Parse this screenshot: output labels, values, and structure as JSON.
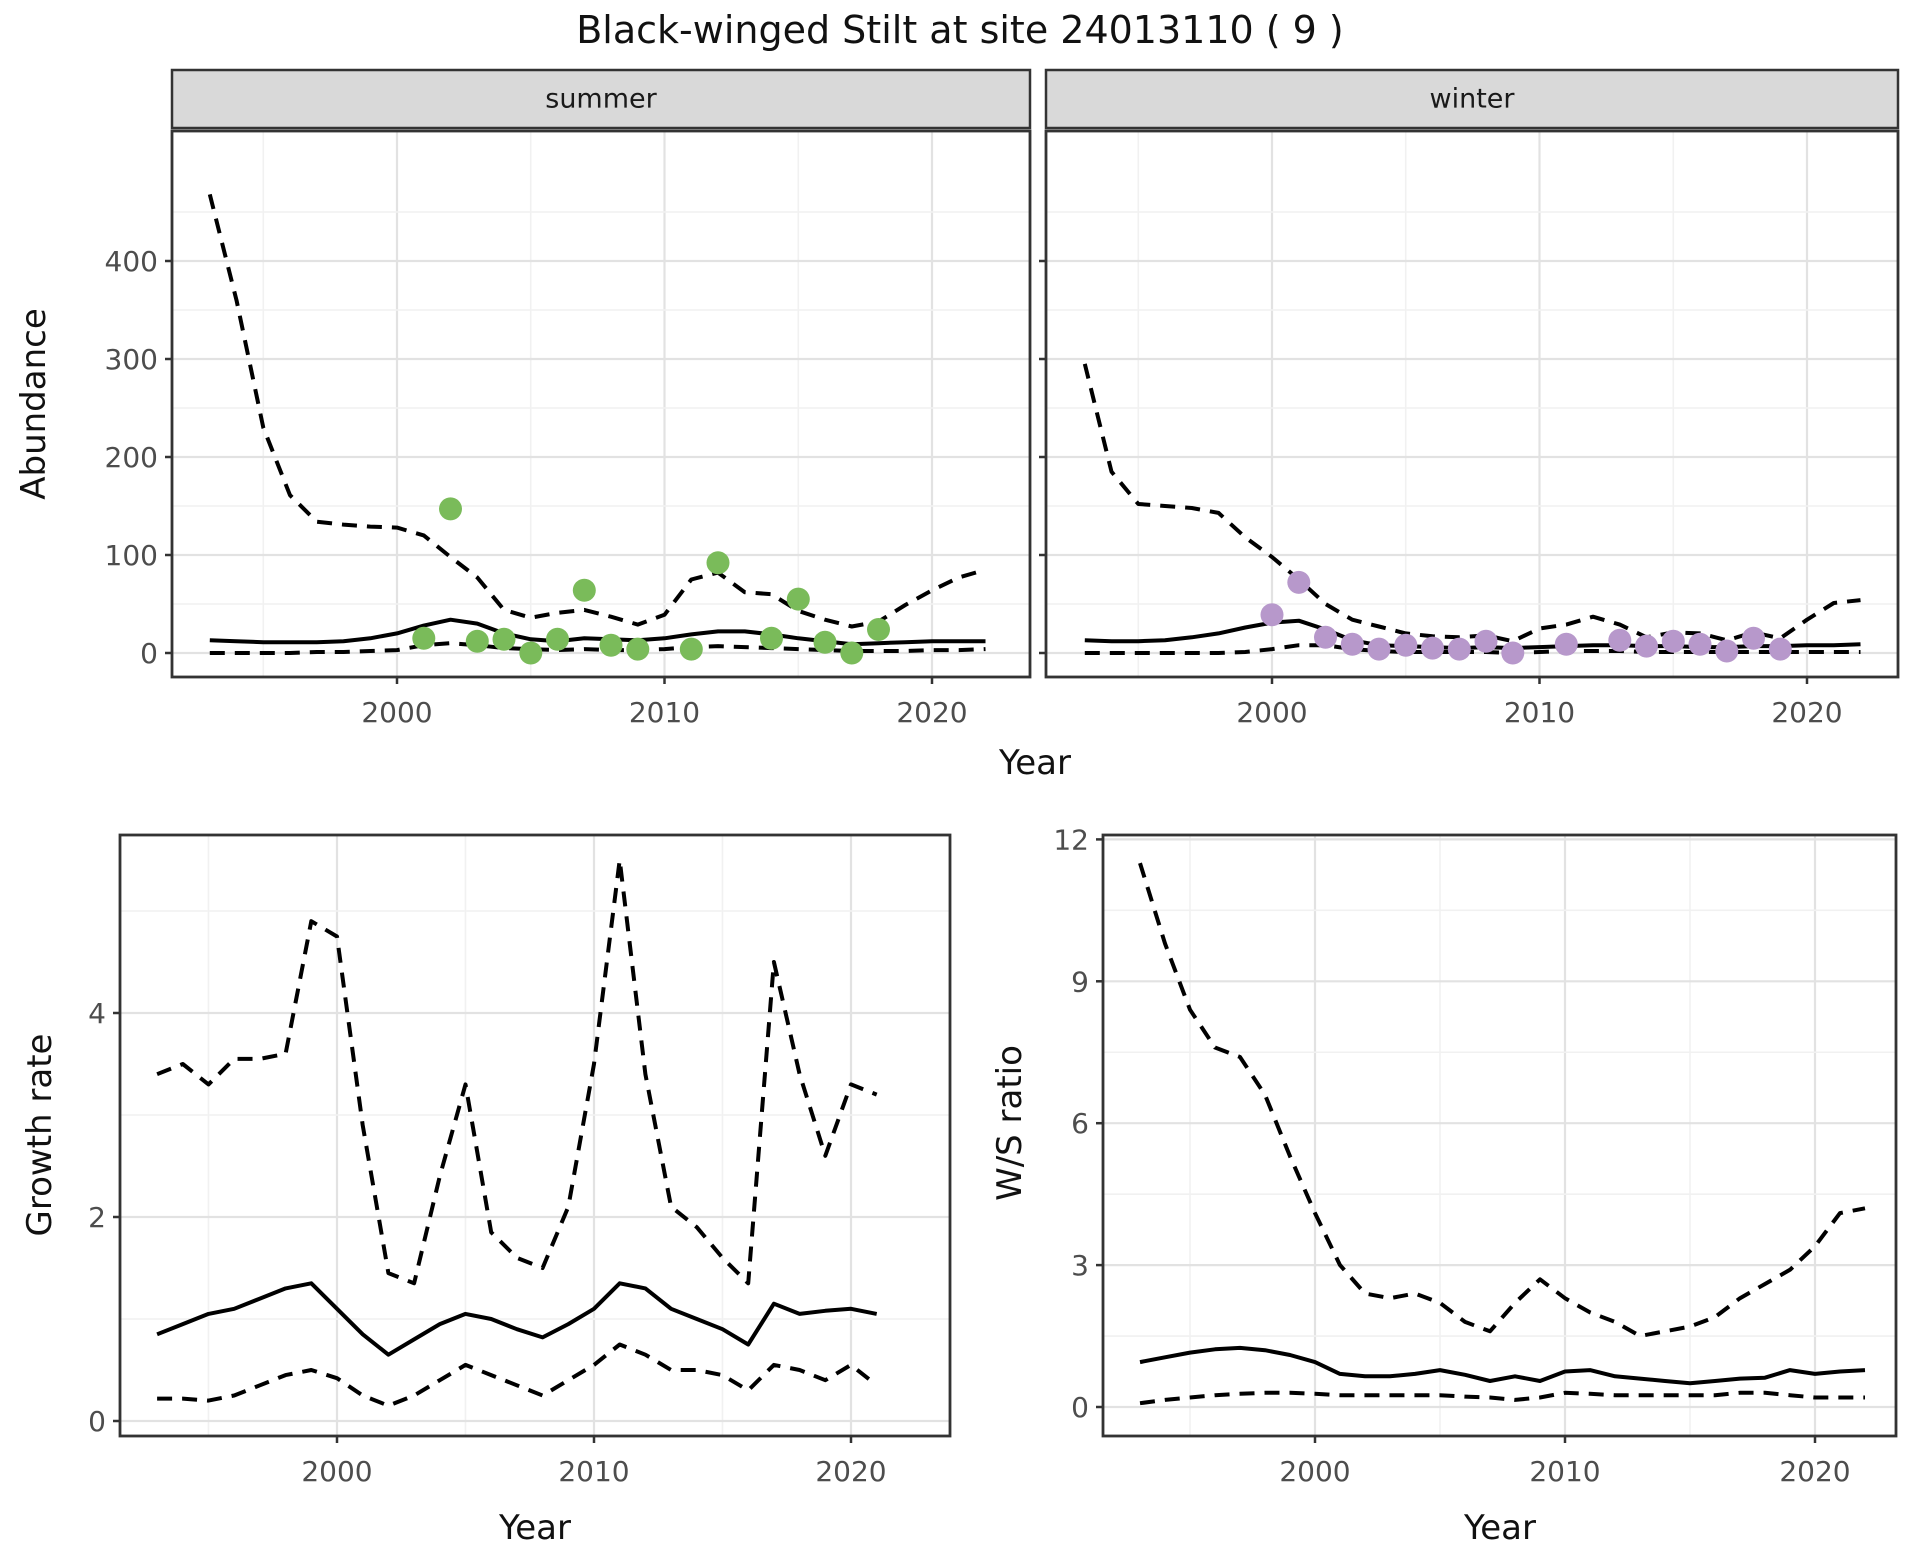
{
  "title": "Black-winged Stilt at site 24013110 ( 9 )",
  "colors": {
    "summer_point": "#7abb5a",
    "winter_point": "#b798cb",
    "line": "#000000",
    "grid_major": "#e2e2e2",
    "grid_minor": "#f1f1f1",
    "strip_fill": "#d9d9d9",
    "panel_border": "#333333",
    "tick_label": "#4d4d4d",
    "text": "#111111"
  },
  "chart_data": {
    "type": "line",
    "figure_title": "Black-winged Stilt at site 24013110 ( 9 )",
    "facet_row": {
      "ylabel": "Abundance",
      "xlabel": "Year",
      "yticks": [
        0,
        100,
        200,
        300,
        400
      ],
      "xticks": [
        2000,
        2010,
        2020
      ],
      "ylim": [
        -24,
        533
      ],
      "xlim": [
        1991.6,
        2023.7
      ],
      "grid": "on",
      "legend": "none",
      "series_style": {
        "median": "solid",
        "upper": "dashed",
        "lower": "dashed"
      },
      "panels": [
        {
          "label": "summer",
          "years": [
            1993,
            1994,
            1995,
            1996,
            1997,
            1998,
            1999,
            2000,
            2001,
            2002,
            2003,
            2004,
            2005,
            2006,
            2007,
            2008,
            2009,
            2010,
            2011,
            2012,
            2013,
            2014,
            2015,
            2016,
            2017,
            2018,
            2019,
            2020,
            2021,
            2022
          ],
          "median": [
            13,
            12,
            11,
            11,
            11,
            12,
            15,
            20,
            28,
            34,
            30,
            20,
            14,
            12,
            15,
            14,
            13,
            15,
            19,
            22,
            22,
            19,
            15,
            12,
            9,
            10,
            11,
            12,
            12,
            12
          ],
          "upper": [
            468,
            360,
            230,
            161,
            134,
            131,
            129,
            128,
            120,
            98,
            77,
            44,
            36,
            41,
            44,
            37,
            29,
            39,
            75,
            82,
            62,
            60,
            43,
            34,
            27,
            32,
            49,
            64,
            77,
            85
          ],
          "lower": [
            0,
            0,
            0,
            0,
            1,
            1,
            2,
            3,
            8,
            10,
            8,
            5,
            4,
            3,
            4,
            3,
            3,
            4,
            6,
            7,
            6,
            5,
            4,
            3,
            2,
            2,
            2,
            3,
            3,
            4
          ],
          "points": [
            [
              2001,
              15
            ],
            [
              2002,
              147
            ],
            [
              2003,
              12
            ],
            [
              2004,
              14
            ],
            [
              2005,
              0
            ],
            [
              2006,
              14
            ],
            [
              2007,
              64
            ],
            [
              2008,
              8
            ],
            [
              2009,
              4
            ],
            [
              2011,
              4
            ],
            [
              2012,
              92
            ],
            [
              2014,
              15
            ],
            [
              2015,
              55
            ],
            [
              2016,
              11
            ],
            [
              2017,
              0
            ],
            [
              2018,
              24
            ]
          ]
        },
        {
          "label": "winter",
          "years": [
            1993,
            1994,
            1995,
            1996,
            1997,
            1998,
            1999,
            2000,
            2001,
            2002,
            2003,
            2004,
            2005,
            2006,
            2007,
            2008,
            2009,
            2010,
            2011,
            2012,
            2013,
            2014,
            2015,
            2016,
            2017,
            2018,
            2019,
            2020,
            2021,
            2022
          ],
          "median": [
            13,
            12,
            12,
            13,
            16,
            20,
            26,
            31,
            33,
            24,
            13,
            8,
            7,
            6,
            5,
            6,
            5,
            6,
            7,
            8,
            8,
            7,
            7,
            6,
            6,
            7,
            7,
            8,
            8,
            9
          ],
          "upper": [
            295,
            185,
            152,
            150,
            148,
            143,
            118,
            98,
            75,
            50,
            34,
            27,
            20,
            17,
            16,
            18,
            12,
            25,
            29,
            37,
            29,
            16,
            21,
            20,
            13,
            21,
            15,
            34,
            51,
            54
          ],
          "lower": [
            0,
            0,
            0,
            0,
            0,
            0,
            1,
            4,
            8,
            8,
            4,
            2,
            1,
            1,
            1,
            1,
            0,
            1,
            2,
            2,
            2,
            1,
            1,
            1,
            1,
            1,
            1,
            1,
            1,
            1
          ],
          "points": [
            [
              2000,
              39
            ],
            [
              2001,
              72
            ],
            [
              2002,
              16
            ],
            [
              2003,
              9
            ],
            [
              2004,
              4
            ],
            [
              2005,
              8
            ],
            [
              2006,
              5
            ],
            [
              2007,
              4
            ],
            [
              2008,
              12
            ],
            [
              2009,
              0
            ],
            [
              2011,
              9
            ],
            [
              2013,
              13
            ],
            [
              2014,
              7
            ],
            [
              2015,
              12
            ],
            [
              2016,
              9
            ],
            [
              2017,
              2
            ],
            [
              2018,
              15
            ],
            [
              2019,
              4
            ]
          ]
        }
      ]
    },
    "growth": {
      "ylabel": "Growth rate",
      "xlabel": "Year",
      "yticks": [
        0,
        2,
        4
      ],
      "xticks": [
        2000,
        2010,
        2020
      ],
      "ylim": [
        -0.15,
        5.75
      ],
      "xlim": [
        1991.6,
        2023.9
      ],
      "grid": "on",
      "years": [
        1993,
        1994,
        1995,
        1996,
        1997,
        1998,
        1999,
        2000,
        2001,
        2002,
        2003,
        2004,
        2005,
        2006,
        2007,
        2008,
        2009,
        2010,
        2011,
        2012,
        2013,
        2014,
        2015,
        2016,
        2017,
        2018,
        2019,
        2020,
        2021
      ],
      "median": [
        0.85,
        0.95,
        1.05,
        1.1,
        1.2,
        1.3,
        1.35,
        1.1,
        0.85,
        0.65,
        0.8,
        0.95,
        1.05,
        1.0,
        0.9,
        0.82,
        0.95,
        1.1,
        1.35,
        1.3,
        1.1,
        1.0,
        0.9,
        0.75,
        1.15,
        1.05,
        1.08,
        1.1,
        1.05
      ],
      "upper": [
        3.4,
        3.5,
        3.3,
        3.55,
        3.55,
        3.6,
        4.9,
        4.75,
        2.9,
        1.45,
        1.35,
        2.4,
        3.3,
        1.85,
        1.6,
        1.5,
        2.1,
        3.5,
        5.5,
        3.4,
        2.1,
        1.9,
        1.6,
        1.35,
        4.5,
        3.4,
        2.6,
        3.3,
        3.2
      ],
      "lower": [
        0.22,
        0.22,
        0.2,
        0.25,
        0.35,
        0.45,
        0.5,
        0.42,
        0.25,
        0.15,
        0.25,
        0.4,
        0.55,
        0.45,
        0.35,
        0.25,
        0.4,
        0.55,
        0.75,
        0.65,
        0.5,
        0.5,
        0.45,
        0.3,
        0.55,
        0.5,
        0.4,
        0.55,
        0.35
      ]
    },
    "ws_ratio": {
      "ylabel": "W/S ratio",
      "xlabel": "Year",
      "yticks": [
        0,
        3,
        6,
        9,
        12
      ],
      "xticks": [
        2000,
        2010,
        2020
      ],
      "ylim": [
        -0.17,
        12.1
      ],
      "xlim": [
        1991.5,
        2023.2
      ],
      "grid": "on",
      "years": [
        1993,
        1994,
        1995,
        1996,
        1997,
        1998,
        1999,
        2000,
        2001,
        2002,
        2003,
        2004,
        2005,
        2006,
        2007,
        2008,
        2009,
        2010,
        2011,
        2012,
        2013,
        2014,
        2015,
        2016,
        2017,
        2018,
        2019,
        2020,
        2021,
        2022
      ],
      "median": [
        0.95,
        1.05,
        1.15,
        1.22,
        1.25,
        1.2,
        1.1,
        0.95,
        0.7,
        0.65,
        0.65,
        0.7,
        0.78,
        0.68,
        0.55,
        0.65,
        0.55,
        0.75,
        0.78,
        0.65,
        0.6,
        0.55,
        0.5,
        0.55,
        0.6,
        0.62,
        0.78,
        0.7,
        0.75,
        0.78
      ],
      "upper": [
        11.5,
        9.8,
        8.4,
        7.6,
        7.4,
        6.6,
        5.3,
        4.1,
        3.0,
        2.4,
        2.3,
        2.4,
        2.2,
        1.8,
        1.6,
        2.2,
        2.7,
        2.3,
        2.0,
        1.8,
        1.5,
        1.6,
        1.7,
        1.9,
        2.3,
        2.6,
        2.9,
        3.4,
        4.1,
        4.2
      ],
      "lower": [
        0.08,
        0.15,
        0.2,
        0.25,
        0.28,
        0.3,
        0.3,
        0.28,
        0.25,
        0.25,
        0.25,
        0.25,
        0.25,
        0.22,
        0.2,
        0.15,
        0.2,
        0.3,
        0.28,
        0.25,
        0.25,
        0.25,
        0.25,
        0.25,
        0.3,
        0.3,
        0.25,
        0.2,
        0.2,
        0.2
      ]
    }
  },
  "strips": {
    "summer": "summer",
    "winter": "winter"
  }
}
